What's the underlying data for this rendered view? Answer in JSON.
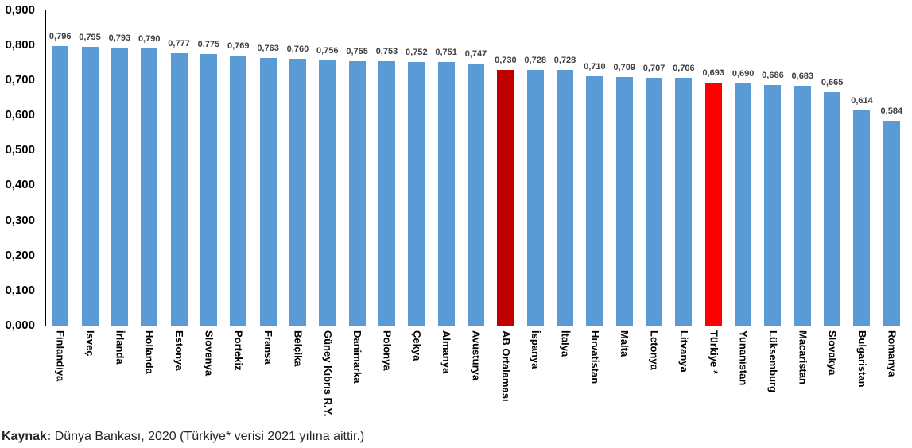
{
  "chart_data": {
    "type": "bar",
    "title": "",
    "xlabel": "",
    "ylabel": "",
    "categories": [
      "Finlandiya",
      "İsveç",
      "İrlanda",
      "Hollanda",
      "Estonya",
      "Slovenya",
      "Portekiz",
      "Fransa",
      "Belçika",
      "Güney Kıbrıs R.Y.",
      "Danimarka",
      "Polonya",
      "Çekya",
      "Almanya",
      "Avusturya",
      "AB Ortalaması",
      "İspanya",
      "İtalya",
      "Hırvatistan",
      "Malta",
      "Letonya",
      "Litvanya",
      "Türkiye *",
      "Yunanistan",
      "Lüksemburg",
      "Macaristan",
      "Slovakya",
      "Bulgaristan",
      "Romanya"
    ],
    "values": [
      0.796,
      0.795,
      0.793,
      0.79,
      0.777,
      0.775,
      0.769,
      0.763,
      0.76,
      0.756,
      0.755,
      0.753,
      0.752,
      0.751,
      0.747,
      0.73,
      0.728,
      0.728,
      0.71,
      0.709,
      0.707,
      0.706,
      0.693,
      0.69,
      0.686,
      0.683,
      0.665,
      0.614,
      0.584
    ],
    "value_labels": [
      "0,796",
      "0,795",
      "0,793",
      "0,790",
      "0,777",
      "0,775",
      "0,769",
      "0,763",
      "0,760",
      "0,756",
      "0,755",
      "0,753",
      "0,752",
      "0,751",
      "0,747",
      "0,730",
      "0,728",
      "0,728",
      "0,710",
      "0,709",
      "0,707",
      "0,706",
      "0,693",
      "0,690",
      "0,686",
      "0,683",
      "0,665",
      "0,614",
      "0,584"
    ],
    "bar_colors": [
      "#5B9BD5",
      "#5B9BD5",
      "#5B9BD5",
      "#5B9BD5",
      "#5B9BD5",
      "#5B9BD5",
      "#5B9BD5",
      "#5B9BD5",
      "#5B9BD5",
      "#5B9BD5",
      "#5B9BD5",
      "#5B9BD5",
      "#5B9BD5",
      "#5B9BD5",
      "#5B9BD5",
      "#C00000",
      "#5B9BD5",
      "#5B9BD5",
      "#5B9BD5",
      "#5B9BD5",
      "#5B9BD5",
      "#5B9BD5",
      "#FF0000",
      "#5B9BD5",
      "#5B9BD5",
      "#5B9BD5",
      "#5B9BD5",
      "#5B9BD5",
      "#5B9BD5"
    ],
    "default_bar_color": "#5B9BD5",
    "highlight_colors": {
      "AB Ortalaması": "#C00000",
      "Türkiye *": "#FF0000"
    },
    "ylim": [
      0,
      0.9
    ],
    "ytick_labels": [
      "0,000",
      "0,100",
      "0,200",
      "0,300",
      "0,400",
      "0,500",
      "0,600",
      "0,700",
      "0,800",
      "0,900"
    ],
    "grid": false,
    "legend": false
  },
  "caption": {
    "label": "Kaynak:",
    "text": " Dünya Bankası, 2020 (Türkiye* verisi 2021 yılına aittir.)"
  }
}
